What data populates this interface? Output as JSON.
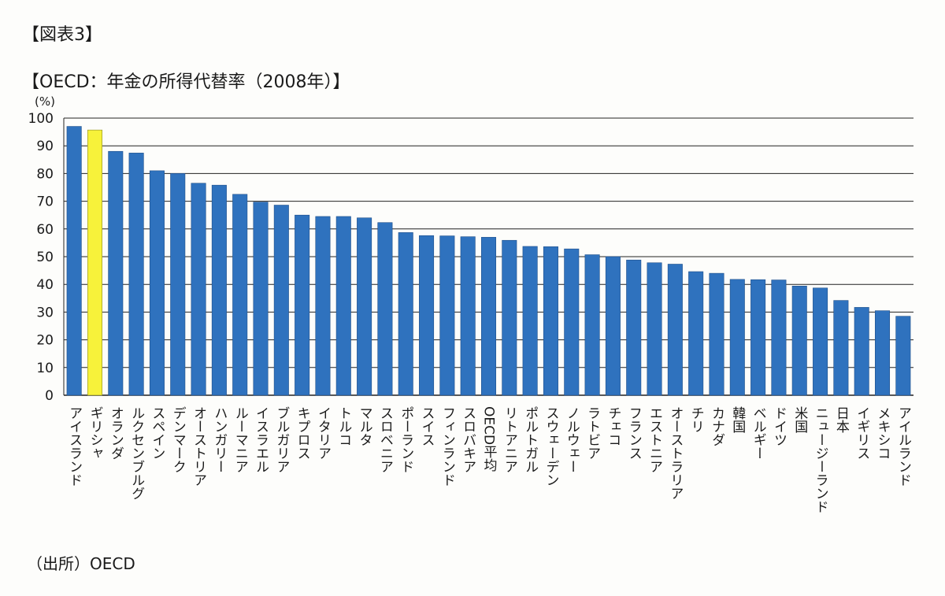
{
  "figure_label": "【図表3】",
  "source": "（出所）OECD",
  "chart_data": {
    "type": "bar",
    "title": "【OECD：年金の所得代替率（2008年）】",
    "ylabel": "(%)",
    "xlabel": "",
    "ylim": [
      0,
      100
    ],
    "yticks": [
      0,
      10,
      20,
      30,
      40,
      50,
      60,
      70,
      80,
      90,
      100
    ],
    "grid": true,
    "highlight_color": "#f7f23a",
    "bar_color": "#2f72be",
    "highlight_category": "ギリシャ",
    "categories": [
      "アイスランド",
      "ギリシャ",
      "オランダ",
      "ルクセンブルグ",
      "スペイン",
      "デンマーク",
      "オーストリア",
      "ハンガリー",
      "ルーマニア",
      "イスラエル",
      "ブルガリア",
      "キプロス",
      "イタリア",
      "トルコ",
      "マルタ",
      "スロベニア",
      "ポーランド",
      "スイス",
      "フィンランド",
      "スロバキア",
      "OECD平均",
      "リトアニア",
      "ポルトガル",
      "スウェーデン",
      "ノルウェー",
      "ラトビア",
      "チェコ",
      "フランス",
      "エストニア",
      "オーストラリア",
      "チリ",
      "カナダ",
      "韓国",
      "ベルギー",
      "ドイツ",
      "米国",
      "ニュージーランド",
      "日本",
      "イギリス",
      "メキシコ",
      "アイルランド"
    ],
    "values": [
      97,
      95.7,
      88,
      87.4,
      81,
      80,
      76.5,
      75.8,
      72.5,
      69.7,
      68.6,
      65,
      64.5,
      64.5,
      64,
      62.3,
      58.7,
      57.6,
      57.5,
      57.2,
      57,
      55.9,
      53.7,
      53.6,
      52.8,
      50.7,
      50,
      48.8,
      47.8,
      47.3,
      44.6,
      44,
      41.8,
      41.7,
      41.6,
      39.4,
      38.7,
      34.2,
      31.7,
      30.5,
      28.5
    ]
  }
}
